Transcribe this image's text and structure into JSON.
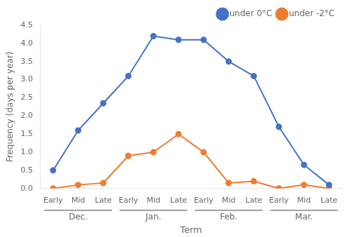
{
  "chart_data": {
    "type": "line",
    "categories": [
      "Early",
      "Mid",
      "Late",
      "Early",
      "Mid",
      "Late",
      "Early",
      "Mid",
      "Late",
      "Early",
      "Mid",
      "Late"
    ],
    "category_groups": [
      "Dec.",
      "Jan.",
      "Feb.",
      "Mar."
    ],
    "series": [
      {
        "name": "under 0°C",
        "color": "#4472C4",
        "values": [
          0.5,
          1.6,
          2.35,
          3.1,
          4.2,
          4.1,
          4.1,
          3.5,
          3.1,
          1.7,
          0.65,
          0.1
        ]
      },
      {
        "name": "under -2°C",
        "color": "#ED7D31",
        "values": [
          0.0,
          0.1,
          0.15,
          0.9,
          1.0,
          1.5,
          1.0,
          0.15,
          0.2,
          0.0,
          0.1,
          0.0
        ]
      }
    ],
    "x_label": "Term",
    "y_label": "Frequency (days per year)",
    "ylim": [
      0,
      4.5
    ],
    "yticks": [
      {
        "value": 0,
        "label": "0.0"
      },
      {
        "value": 0.5,
        "label": "0.5"
      },
      {
        "value": 1.0,
        "label": "1.0"
      },
      {
        "value": 1.5,
        "label": "1.5"
      },
      {
        "value": 2.0,
        "label": "2.0"
      },
      {
        "value": 2.5,
        "label": "2.5"
      },
      {
        "value": 3.0,
        "label": "3.0"
      },
      {
        "value": 3.5,
        "label": "3.5"
      },
      {
        "value": 4.0,
        "label": "4.0"
      },
      {
        "value": 4.5,
        "label": "4.5"
      }
    ],
    "marker": "circle",
    "legend": "upper right",
    "grid": false
  }
}
